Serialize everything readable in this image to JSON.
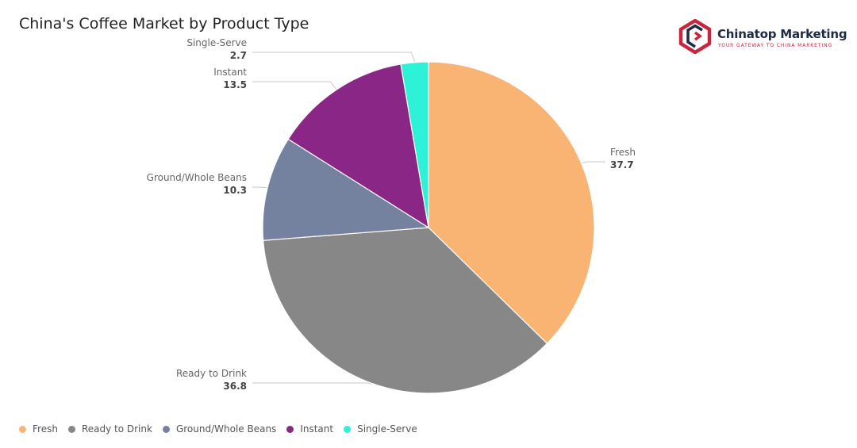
{
  "chart_data": {
    "type": "pie",
    "title": "China's Coffee Market by Product Type",
    "categories": [
      "Fresh",
      "Ready to Drink",
      "Ground/Whole Beans",
      "Instant",
      "Single-Serve"
    ],
    "values": [
      37.7,
      36.8,
      10.3,
      13.5,
      2.7
    ],
    "colors": [
      "#f9b473",
      "#878787",
      "#75829f",
      "#8a2786",
      "#2ef2d8"
    ],
    "value_labels": [
      "37.7",
      "36.8",
      "10.3",
      "13.5",
      "2.7"
    ],
    "legend_position": "bottom-left",
    "start_angle": "top (12 o'clock), clockwise"
  },
  "brand": {
    "name": "Chinatop Marketing",
    "tagline": "YOUR GATEWAY TO CHINA MARKETING",
    "accent_color": "#c8263f",
    "text_color": "#1f2a44",
    "icon": "chinatop-logo-icon"
  }
}
